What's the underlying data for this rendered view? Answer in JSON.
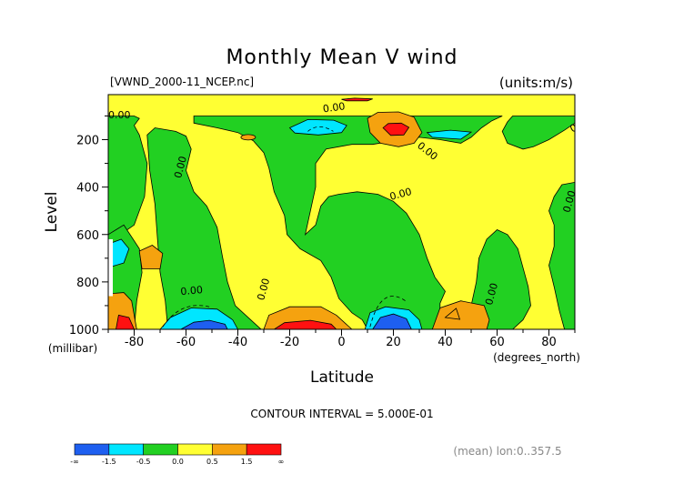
{
  "chart_data": {
    "type": "filled-contour",
    "title": "Monthly Mean V wind",
    "file_label": "[VWND_2000-11_NCEP.nc]",
    "units_label": "(units:m/s)",
    "xlabel": "Latitude",
    "x_units": "(degrees_north)",
    "ylabel": "Level",
    "y_units": "(millibar)",
    "xlim": [
      -90,
      90
    ],
    "ylim": [
      1000,
      10
    ],
    "x_ticks": [
      -80,
      -60,
      -40,
      -20,
      0,
      20,
      40,
      60,
      80
    ],
    "y_ticks": [
      200,
      400,
      600,
      800,
      1000
    ],
    "contour_interval_text": "CONTOUR INTERVAL = 5.000E-01",
    "contour_labels": [
      "0.00",
      "0.00",
      "0.00",
      "0.00",
      "0.00",
      "0.00",
      "0.00",
      "0.00",
      "0.00",
      "0.00"
    ],
    "footer_note": "(mean) lon:0..357.5",
    "legend": {
      "tick_labels": [
        "-∞",
        "-1.5",
        "-0.5",
        "0.0",
        "0.5",
        "1.5",
        "∞"
      ],
      "bins": [
        {
          "range": "< -1.5",
          "color": "#1e5ff0"
        },
        {
          "range": "-1.5 to -0.5",
          "color": "#00e6ff"
        },
        {
          "range": "-0.5 to 0.0",
          "color": "#22d022"
        },
        {
          "range": "0.0 to 0.5",
          "color": "#ffff33"
        },
        {
          "range": "0.5 to 1.5",
          "color": "#f5a20f"
        },
        {
          "range": "> 1.5",
          "color": "#ff1111"
        }
      ]
    },
    "regions": [
      {
        "name": "sh-polar-surface-blue",
        "value": -1.0,
        "color": "#00e6ff",
        "poly": [
          [
            -90,
            640
          ],
          [
            -85,
            620
          ],
          [
            -82,
            660
          ],
          [
            -84,
            720
          ],
          [
            -90,
            740
          ]
        ]
      },
      {
        "name": "sh-60-surface-blue",
        "value": -1.0,
        "color": "#00e6ff",
        "poly": [
          [
            -70,
            1000
          ],
          [
            -66,
            950
          ],
          [
            -58,
            910
          ],
          [
            -48,
            915
          ],
          [
            -42,
            960
          ],
          [
            -40,
            1000
          ]
        ]
      },
      {
        "name": "sh-55-surface-core",
        "value": -2.0,
        "color": "#1e5ff0",
        "poly": [
          [
            -62,
            1000
          ],
          [
            -57,
            970
          ],
          [
            -51,
            962
          ],
          [
            -45,
            978
          ],
          [
            -44,
            1000
          ]
        ]
      },
      {
        "name": "trop-20s-orange",
        "value": 1.0,
        "color": "#f5a20f",
        "poly": [
          [
            -30,
            1000
          ],
          [
            -28,
            940
          ],
          [
            -20,
            905
          ],
          [
            -8,
            905
          ],
          [
            -2,
            940
          ],
          [
            4,
            1000
          ]
        ]
      },
      {
        "name": "trop-20s-red",
        "value": 2.0,
        "color": "#ff1111",
        "poly": [
          [
            -26,
            1000
          ],
          [
            -22,
            972
          ],
          [
            -12,
            962
          ],
          [
            -4,
            978
          ],
          [
            -2,
            1000
          ]
        ]
      },
      {
        "name": "nh-18-surface-blue",
        "value": -1.0,
        "color": "#00e6ff",
        "poly": [
          [
            9,
            1000
          ],
          [
            11,
            930
          ],
          [
            17,
            905
          ],
          [
            26,
            918
          ],
          [
            30,
            960
          ],
          [
            31,
            1000
          ]
        ]
      },
      {
        "name": "nh-18-surface-core",
        "value": -2.0,
        "color": "#1e5ff0",
        "poly": [
          [
            12,
            1000
          ],
          [
            15,
            950
          ],
          [
            20,
            935
          ],
          [
            25,
            955
          ],
          [
            27,
            1000
          ]
        ]
      },
      {
        "name": "nh-45-surface-orange",
        "value": 1.0,
        "color": "#f5a20f",
        "poly": [
          [
            35,
            1000
          ],
          [
            38,
            910
          ],
          [
            46,
            880
          ],
          [
            55,
            900
          ],
          [
            57,
            960
          ],
          [
            56,
            1000
          ]
        ]
      },
      {
        "name": "nh-200-orange",
        "value": 1.0,
        "color": "#f5a20f",
        "poly": [
          [
            10,
            110
          ],
          [
            14,
            85
          ],
          [
            22,
            83
          ],
          [
            28,
            105
          ],
          [
            31,
            170
          ],
          [
            28,
            215
          ],
          [
            22,
            230
          ],
          [
            15,
            215
          ],
          [
            11,
            170
          ]
        ]
      },
      {
        "name": "nh-200-red",
        "value": 2.0,
        "color": "#ff1111",
        "poly": [
          [
            16,
            150
          ],
          [
            18,
            132
          ],
          [
            23,
            130
          ],
          [
            26,
            148
          ],
          [
            24,
            180
          ],
          [
            19,
            182
          ]
        ]
      },
      {
        "name": "upper-blue-5s",
        "value": -1.0,
        "color": "#00e6ff",
        "poly": [
          [
            -20,
            150
          ],
          [
            -13,
            115
          ],
          [
            -3,
            118
          ],
          [
            2,
            140
          ],
          [
            0,
            170
          ],
          [
            -9,
            180
          ],
          [
            -18,
            172
          ]
        ]
      },
      {
        "name": "upper-blue-40n",
        "value": -1.0,
        "color": "#00e6ff",
        "poly": [
          [
            33,
            170
          ],
          [
            42,
            160
          ],
          [
            50,
            168
          ],
          [
            46,
            198
          ],
          [
            35,
            190
          ]
        ]
      },
      {
        "name": "sh-75-orange",
        "value": 1.0,
        "color": "#f5a20f",
        "poly": [
          [
            -78,
            670
          ],
          [
            -73,
            645
          ],
          [
            -69,
            680
          ],
          [
            -70,
            745
          ],
          [
            -77,
            745
          ]
        ]
      },
      {
        "name": "sh-pole-surface-orange",
        "value": 1.0,
        "color": "#f5a20f",
        "poly": [
          [
            -90,
            850
          ],
          [
            -84,
            845
          ],
          [
            -81,
            880
          ],
          [
            -79,
            1000
          ],
          [
            -90,
            1000
          ]
        ]
      },
      {
        "name": "sh-pole-surface-red",
        "value": 2.0,
        "color": "#ff1111",
        "poly": [
          [
            -87,
            1000
          ],
          [
            -86,
            940
          ],
          [
            -82,
            950
          ],
          [
            -80,
            1000
          ]
        ]
      },
      {
        "name": "top-strip-red",
        "value": 2.0,
        "color": "#ff1111",
        "poly": [
          [
            0,
            30
          ],
          [
            5,
            25
          ],
          [
            12,
            28
          ],
          [
            10,
            36
          ],
          [
            2,
            36
          ]
        ]
      }
    ]
  }
}
